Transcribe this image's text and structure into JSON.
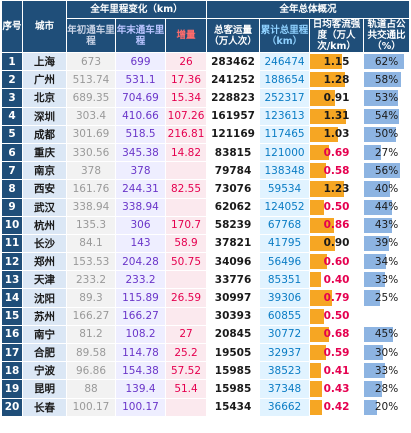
{
  "headers": {
    "rank": "序号",
    "city": "城市",
    "group_mileage": "全年里程变化（km）",
    "group_ridership": "全年总体概况",
    "start_mileage": "年初通车里程",
    "end_mileage": "年末通车里程",
    "increase": "增量",
    "total_ridership": "总客运量（万人次）",
    "cumulative_mileage": "累计总里程（km）",
    "daily_intensity": "日均客流强度（万人次/km）",
    "transit_share": "轨道占公共交通比（%）"
  },
  "colors": {
    "header_bg": "#1f4e79",
    "intensity_bar": "#f6a623",
    "share_bar": "#8db4e2",
    "increase_text": "#e5004f",
    "end_text": "#6a36c9",
    "cumulative_text": "#0a7cc4"
  },
  "rows": [
    {
      "rank": "1",
      "city": "上海",
      "start": "673",
      "end": "699",
      "inc": "26",
      "total": "283462",
      "cum": "246474",
      "intensity": "1.15",
      "share": "62%",
      "intensity_v": 1.15,
      "share_v": 62
    },
    {
      "rank": "2",
      "city": "广州",
      "start": "513.74",
      "end": "531.1",
      "inc": "17.36",
      "total": "241252",
      "cum": "188654",
      "intensity": "1.28",
      "share": "58%",
      "intensity_v": 1.28,
      "share_v": 58
    },
    {
      "rank": "3",
      "city": "北京",
      "start": "689.35",
      "end": "704.69",
      "inc": "15.34",
      "total": "228823",
      "cum": "252317",
      "intensity": "0.91",
      "share": "53%",
      "intensity_v": 0.91,
      "share_v": 53
    },
    {
      "rank": "4",
      "city": "深圳",
      "start": "303.4",
      "end": "410.66",
      "inc": "107.26",
      "total": "161957",
      "cum": "123613",
      "intensity": "1.31",
      "share": "54%",
      "intensity_v": 1.31,
      "share_v": 54
    },
    {
      "rank": "5",
      "city": "成都",
      "start": "301.69",
      "end": "518.5",
      "inc": "216.81",
      "total": "121169",
      "cum": "117465",
      "intensity": "1.03",
      "share": "50%",
      "intensity_v": 1.03,
      "share_v": 50
    },
    {
      "rank": "6",
      "city": "重庆",
      "start": "330.56",
      "end": "345.38",
      "inc": "14.82",
      "total": "83815",
      "cum": "121000",
      "intensity": "0.69",
      "share": "27%",
      "intensity_v": 0.69,
      "share_v": 27
    },
    {
      "rank": "7",
      "city": "南京",
      "start": "378",
      "end": "378",
      "inc": "",
      "total": "79784",
      "cum": "138348",
      "intensity": "0.58",
      "share": "56%",
      "intensity_v": 0.58,
      "share_v": 56
    },
    {
      "rank": "8",
      "city": "西安",
      "start": "161.76",
      "end": "244.31",
      "inc": "82.55",
      "total": "73076",
      "cum": "59534",
      "intensity": "1.23",
      "share": "40%",
      "intensity_v": 1.23,
      "share_v": 40
    },
    {
      "rank": "9",
      "city": "武汉",
      "start": "338.94",
      "end": "338.94",
      "inc": "",
      "total": "62062",
      "cum": "124052",
      "intensity": "0.50",
      "share": "44%",
      "intensity_v": 0.5,
      "share_v": 44
    },
    {
      "rank": "10",
      "city": "杭州",
      "start": "135.3",
      "end": "306",
      "inc": "170.7",
      "total": "58239",
      "cum": "67768",
      "intensity": "0.86",
      "share": "43%",
      "intensity_v": 0.86,
      "share_v": 43
    },
    {
      "rank": "11",
      "city": "长沙",
      "start": "84.1",
      "end": "143",
      "inc": "58.9",
      "total": "37821",
      "cum": "41795",
      "intensity": "0.90",
      "share": "39%",
      "intensity_v": 0.9,
      "share_v": 39
    },
    {
      "rank": "12",
      "city": "郑州",
      "start": "153.53",
      "end": "204.28",
      "inc": "50.75",
      "total": "34096",
      "cum": "56496",
      "intensity": "0.60",
      "share": "34%",
      "intensity_v": 0.6,
      "share_v": 34
    },
    {
      "rank": "13",
      "city": "天津",
      "start": "233.2",
      "end": "233.2",
      "inc": "",
      "total": "33776",
      "cum": "85351",
      "intensity": "0.40",
      "share": "33%",
      "intensity_v": 0.4,
      "share_v": 33
    },
    {
      "rank": "14",
      "city": "沈阳",
      "start": "89.3",
      "end": "115.89",
      "inc": "26.59",
      "total": "30997",
      "cum": "39306",
      "intensity": "0.79",
      "share": "25%",
      "intensity_v": 0.79,
      "share_v": 25
    },
    {
      "rank": "15",
      "city": "苏州",
      "start": "166.27",
      "end": "166.27",
      "inc": "",
      "total": "30393",
      "cum": "60855",
      "intensity": "0.50",
      "share": "",
      "intensity_v": 0.5,
      "share_v": 0
    },
    {
      "rank": "16",
      "city": "南宁",
      "start": "81.2",
      "end": "108.2",
      "inc": "27",
      "total": "20845",
      "cum": "30772",
      "intensity": "0.68",
      "share": "45%",
      "intensity_v": 0.68,
      "share_v": 45
    },
    {
      "rank": "17",
      "city": "合肥",
      "start": "89.58",
      "end": "114.78",
      "inc": "25.2",
      "total": "19505",
      "cum": "32937",
      "intensity": "0.59",
      "share": "30%",
      "intensity_v": 0.59,
      "share_v": 30
    },
    {
      "rank": "18",
      "city": "宁波",
      "start": "96.86",
      "end": "154.38",
      "inc": "57.52",
      "total": "15985",
      "cum": "38523",
      "intensity": "0.41",
      "share": "33%",
      "intensity_v": 0.41,
      "share_v": 33
    },
    {
      "rank": "19",
      "city": "昆明",
      "start": "88",
      "end": "139.4",
      "inc": "51.4",
      "total": "15985",
      "cum": "37348",
      "intensity": "0.43",
      "share": "28%",
      "intensity_v": 0.43,
      "share_v": 28
    },
    {
      "rank": "20",
      "city": "长春",
      "start": "100.17",
      "end": "100.17",
      "inc": "",
      "total": "15434",
      "cum": "36662",
      "intensity": "0.42",
      "share": "20%",
      "intensity_v": 0.42,
      "share_v": 20
    }
  ]
}
